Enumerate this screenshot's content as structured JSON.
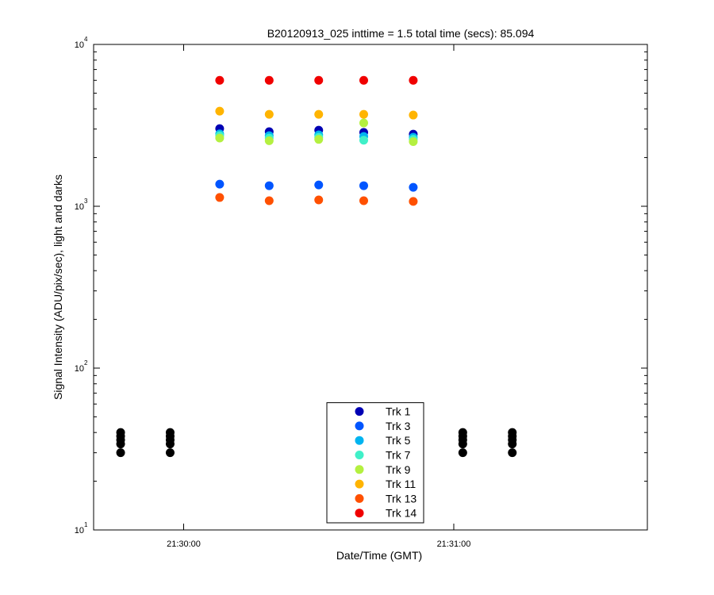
{
  "chart_data": {
    "type": "scatter",
    "title": "B20120913_025 inttime = 1.5 total time (secs): 85.094",
    "x_label": "Date/Time (GMT)",
    "y_label": "Signal Intensity (ADU/pix/sec), light and darks",
    "log_y": true,
    "xlim": [
      "21:29:40",
      "21:31:43"
    ],
    "xticks": [
      "21:30:00",
      "21:31:00"
    ],
    "ylim": [
      10,
      10000
    ],
    "yticks": [
      {
        "value": 10,
        "label": "10",
        "exponent": "1"
      },
      {
        "value": 100,
        "label": "10",
        "exponent": "2"
      },
      {
        "value": 1000,
        "label": "10",
        "exponent": "3"
      },
      {
        "value": 10000,
        "label": "10",
        "exponent": "4"
      }
    ],
    "legend_position": "bottom",
    "x": [
      "21:30:08",
      "21:30:19",
      "21:30:30",
      "21:30:40",
      "21:30:51"
    ],
    "series": [
      {
        "name": "Trk 1",
        "color": "#0000b4",
        "values": [
          3020,
          2890,
          2950,
          2860,
          2790
        ]
      },
      {
        "name": "Trk 3",
        "color": "#0055ff",
        "values": [
          1370,
          1340,
          1355,
          1340,
          1310
        ]
      },
      {
        "name": "Trk 5",
        "color": "#00b4f0",
        "values": [
          2800,
          2730,
          2760,
          2700,
          2670
        ]
      },
      {
        "name": "Trk 7",
        "color": "#40f0c8",
        "values": [
          2730,
          2640,
          2670,
          2560,
          2590
        ]
      },
      {
        "name": "Trk 9",
        "color": "#b4f040",
        "values": [
          2640,
          2540,
          2590,
          3270,
          2510
        ]
      },
      {
        "name": "Trk 11",
        "color": "#ffb400",
        "values": [
          3870,
          3700,
          3700,
          3700,
          3660
        ]
      },
      {
        "name": "Trk 13",
        "color": "#ff5000",
        "values": [
          1133,
          1082,
          1094,
          1082,
          1071
        ]
      },
      {
        "name": "Trk 14",
        "color": "#f00000",
        "values": [
          6000,
          6000,
          6000,
          6000,
          6000
        ]
      }
    ],
    "darks": {
      "color": "#000000",
      "x": [
        "21:29:46",
        "21:29:46",
        "21:29:46",
        "21:29:46",
        "21:29:46",
        "21:29:57",
        "21:29:57",
        "21:29:57",
        "21:29:57",
        "21:29:57",
        "21:31:02",
        "21:31:02",
        "21:31:02",
        "21:31:02",
        "21:31:02",
        "21:31:13",
        "21:31:13",
        "21:31:13",
        "21:31:13",
        "21:31:13"
      ],
      "values": [
        30,
        34,
        36,
        38,
        40,
        30,
        34,
        36,
        38,
        40,
        30,
        34,
        36,
        38,
        40,
        30,
        34,
        36,
        38,
        40
      ]
    }
  }
}
